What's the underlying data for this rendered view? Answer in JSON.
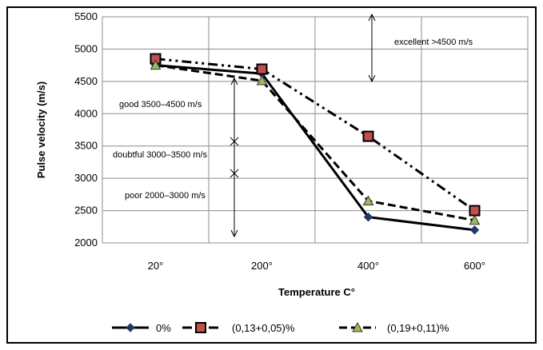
{
  "chart_data": {
    "type": "line",
    "categories": [
      "20°",
      "200°",
      "400°",
      "600°"
    ],
    "series": [
      {
        "name": "0%",
        "values": [
          4750,
          4620,
          2400,
          2200
        ],
        "color": "#000000",
        "marker": "diamond",
        "dash": "solid"
      },
      {
        "name": "(0,13+0,05)%",
        "values": [
          4850,
          4690,
          3650,
          2500
        ],
        "color": "#000000",
        "marker": "square",
        "marker_fill": "#c0504d",
        "dash": "dash-dot-dot"
      },
      {
        "name": "(0,19+0,11)%",
        "values": [
          4750,
          4510,
          2650,
          2350
        ],
        "color": "#000000",
        "marker": "triangle",
        "marker_fill": "#9bbb59",
        "dash": "dash"
      }
    ],
    "xlabel": "Temperature C°",
    "ylabel": "Pulse velocity (m/s)",
    "ylim": [
      2000,
      5500
    ],
    "yticks": [
      "2000",
      "2500",
      "3000",
      "3500",
      "4000",
      "4500",
      "5000",
      "5500"
    ],
    "grid": true,
    "legend_position": "bottom",
    "annotations": {
      "excellent": "excellent >4500 m/s",
      "good": "good 3500–4500 m/s",
      "doubtful": "doubtful 3000–3500 m/s",
      "poor": "poor 2000–3000 m/s"
    }
  }
}
